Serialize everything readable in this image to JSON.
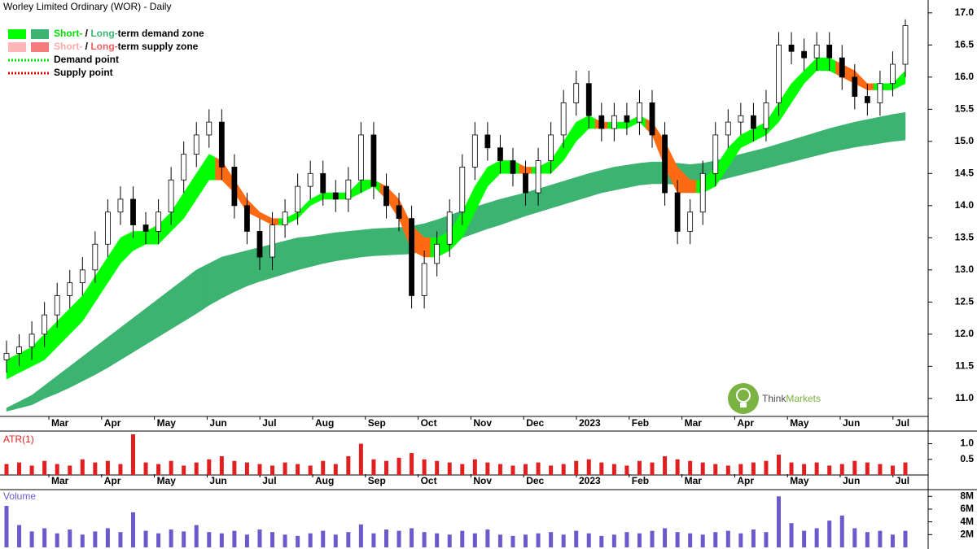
{
  "chart_data": [
    {
      "type": "candlestick",
      "title": "Worley Limited Ordinary (WOR) - Daily",
      "categories": [
        "Mar",
        "Apr",
        "May",
        "Jun",
        "Jul",
        "Aug",
        "Sep",
        "Oct",
        "Nov",
        "Dec",
        "2023",
        "Feb",
        "Mar",
        "Apr",
        "May",
        "Jun",
        "Jul"
      ],
      "open": [
        11.6,
        11.7,
        11.8,
        12.0,
        12.3,
        12.6,
        12.8,
        13.0,
        13.4,
        13.9,
        14.1,
        13.7,
        13.6,
        13.9,
        14.4,
        14.8,
        15.1,
        15.3,
        14.6,
        14.0,
        13.6,
        13.2,
        13.7,
        13.9,
        14.3,
        14.5,
        14.2,
        14.1,
        14.4,
        15.1,
        14.3,
        14.0,
        13.8,
        12.6,
        13.1,
        13.4,
        13.9,
        14.6,
        15.1,
        14.9,
        14.7,
        14.5,
        14.2,
        14.7,
        15.1,
        15.6,
        15.9,
        15.4,
        15.2,
        15.4,
        15.3,
        15.6,
        15.1,
        14.2,
        13.6,
        13.9,
        14.5,
        15.1,
        15.3,
        15.4,
        15.2,
        15.6,
        16.5,
        16.4,
        16.3,
        16.5,
        16.3,
        16.0,
        15.7,
        15.6,
        15.9,
        16.2
      ],
      "high": [
        11.9,
        12.0,
        12.2,
        12.5,
        12.8,
        13.0,
        13.2,
        13.6,
        14.1,
        14.3,
        14.3,
        13.9,
        14.1,
        14.6,
        15.0,
        15.3,
        15.5,
        15.5,
        14.8,
        14.2,
        13.8,
        13.9,
        14.1,
        14.5,
        14.7,
        14.7,
        14.4,
        14.6,
        15.3,
        15.3,
        14.5,
        14.2,
        14.0,
        13.3,
        13.6,
        14.1,
        14.8,
        15.3,
        15.3,
        15.1,
        14.9,
        14.7,
        14.9,
        15.3,
        15.8,
        16.1,
        16.1,
        15.6,
        15.6,
        15.6,
        15.8,
        15.8,
        15.3,
        14.4,
        14.1,
        14.7,
        15.3,
        15.5,
        15.6,
        15.6,
        15.8,
        16.7,
        16.7,
        16.6,
        16.7,
        16.7,
        16.5,
        16.2,
        15.9,
        16.1,
        16.4,
        16.9
      ],
      "low": [
        11.4,
        11.5,
        11.6,
        11.8,
        12.1,
        12.4,
        12.6,
        12.8,
        13.2,
        13.7,
        13.5,
        13.4,
        13.4,
        13.7,
        14.2,
        14.6,
        14.9,
        14.4,
        13.8,
        13.4,
        13.0,
        13.0,
        13.5,
        13.7,
        14.1,
        14.0,
        13.9,
        13.9,
        14.2,
        14.1,
        13.8,
        13.6,
        12.4,
        12.4,
        12.9,
        13.2,
        13.7,
        14.4,
        14.7,
        14.5,
        14.3,
        14.0,
        14.0,
        14.5,
        14.9,
        15.4,
        15.2,
        15.0,
        15.0,
        15.1,
        15.1,
        14.9,
        14.0,
        13.4,
        13.4,
        13.7,
        14.3,
        14.9,
        15.1,
        15.0,
        15.0,
        15.4,
        16.2,
        16.1,
        16.1,
        16.1,
        15.8,
        15.5,
        15.4,
        15.4,
        15.7,
        16.0
      ],
      "close": [
        11.7,
        11.8,
        12.0,
        12.3,
        12.6,
        12.8,
        13.0,
        13.4,
        13.9,
        14.1,
        13.7,
        13.6,
        13.9,
        14.4,
        14.8,
        15.1,
        15.3,
        14.6,
        14.0,
        13.6,
        13.2,
        13.7,
        13.9,
        14.3,
        14.5,
        14.2,
        14.1,
        14.4,
        15.1,
        14.3,
        14.0,
        13.8,
        12.6,
        13.1,
        13.4,
        13.9,
        14.6,
        15.1,
        14.9,
        14.7,
        14.5,
        14.2,
        14.7,
        15.1,
        15.6,
        15.9,
        15.4,
        15.2,
        15.4,
        15.3,
        15.6,
        15.1,
        14.2,
        13.6,
        13.9,
        14.5,
        15.1,
        15.3,
        15.4,
        15.2,
        15.6,
        16.5,
        16.4,
        16.3,
        16.5,
        16.3,
        16.0,
        15.7,
        15.6,
        15.9,
        16.2,
        16.8
      ],
      "short_upper": [
        11.6,
        11.7,
        11.8,
        12.0,
        12.2,
        12.4,
        12.6,
        12.9,
        13.2,
        13.5,
        13.6,
        13.6,
        13.7,
        13.9,
        14.2,
        14.5,
        14.8,
        14.7,
        14.4,
        14.1,
        13.9,
        13.8,
        13.8,
        13.9,
        14.1,
        14.2,
        14.2,
        14.2,
        14.4,
        14.4,
        14.3,
        14.1,
        13.7,
        13.5,
        13.5,
        13.6,
        13.9,
        14.3,
        14.6,
        14.7,
        14.7,
        14.6,
        14.6,
        14.7,
        15.0,
        15.3,
        15.4,
        15.3,
        15.3,
        15.3,
        15.4,
        15.3,
        15.0,
        14.6,
        14.4,
        14.4,
        14.6,
        14.9,
        15.1,
        15.2,
        15.3,
        15.6,
        15.9,
        16.1,
        16.3,
        16.3,
        16.2,
        16.1,
        15.9,
        15.9,
        15.9,
        16.1
      ],
      "short_lower": [
        11.3,
        11.4,
        11.5,
        11.6,
        11.8,
        12.0,
        12.2,
        12.5,
        12.8,
        13.1,
        13.3,
        13.4,
        13.4,
        13.6,
        13.8,
        14.1,
        14.4,
        14.4,
        14.2,
        13.9,
        13.8,
        13.7,
        13.7,
        13.8,
        14.0,
        14.1,
        14.1,
        14.1,
        14.2,
        14.3,
        14.1,
        13.8,
        13.3,
        13.2,
        13.2,
        13.3,
        13.5,
        13.9,
        14.3,
        14.5,
        14.5,
        14.5,
        14.5,
        14.5,
        14.7,
        15.0,
        15.2,
        15.2,
        15.2,
        15.2,
        15.3,
        15.1,
        14.6,
        14.2,
        14.2,
        14.2,
        14.3,
        14.6,
        14.9,
        15.0,
        15.1,
        15.3,
        15.6,
        15.9,
        16.1,
        16.1,
        16.0,
        15.9,
        15.8,
        15.8,
        15.8,
        15.9
      ],
      "long_upper": [
        10.85,
        10.95,
        11.05,
        11.2,
        11.35,
        11.5,
        11.65,
        11.8,
        11.95,
        12.1,
        12.25,
        12.4,
        12.55,
        12.7,
        12.85,
        13.0,
        13.1,
        13.2,
        13.25,
        13.3,
        13.35,
        13.4,
        13.45,
        13.5,
        13.52,
        13.55,
        13.58,
        13.6,
        13.62,
        13.64,
        13.65,
        13.66,
        13.68,
        13.72,
        13.78,
        13.85,
        13.92,
        13.98,
        14.04,
        14.1,
        14.15,
        14.2,
        14.26,
        14.32,
        14.38,
        14.44,
        14.5,
        14.55,
        14.6,
        14.63,
        14.66,
        14.68,
        14.68,
        14.66,
        14.64,
        14.66,
        14.7,
        14.75,
        14.8,
        14.85,
        14.9,
        14.96,
        15.02,
        15.08,
        15.14,
        15.2,
        15.25,
        15.3,
        15.34,
        15.38,
        15.42,
        15.45
      ],
      "long_lower": [
        10.8,
        10.85,
        10.9,
        11.0,
        11.08,
        11.17,
        11.27,
        11.37,
        11.48,
        11.6,
        11.72,
        11.84,
        11.96,
        12.08,
        12.2,
        12.32,
        12.45,
        12.56,
        12.66,
        12.75,
        12.82,
        12.88,
        12.94,
        13.0,
        13.05,
        13.1,
        13.14,
        13.17,
        13.2,
        13.22,
        13.23,
        13.24,
        13.25,
        13.3,
        13.36,
        13.42,
        13.5,
        13.57,
        13.64,
        13.7,
        13.77,
        13.84,
        13.9,
        13.96,
        14.02,
        14.08,
        14.14,
        14.2,
        14.24,
        14.28,
        14.32,
        14.34,
        14.34,
        14.33,
        14.32,
        14.34,
        14.38,
        14.43,
        14.48,
        14.53,
        14.58,
        14.63,
        14.68,
        14.73,
        14.78,
        14.83,
        14.87,
        14.91,
        14.94,
        14.97,
        15.0,
        15.02
      ],
      "demand_color": "#00ff00",
      "supply_color": "#ff6a13",
      "long_color": "#3cb371",
      "ylim": [
        10.72,
        17.2
      ],
      "yticks": [
        {
          "value": 11,
          "label": "11.0"
        },
        11.5,
        {
          "value": 12,
          "label": "12.0"
        },
        12.5,
        {
          "value": 13,
          "label": "13.0"
        },
        13.5,
        {
          "value": 14,
          "label": "14.0"
        },
        14.5,
        {
          "value": 15,
          "label": "15.0"
        },
        15.5,
        {
          "value": 16,
          "label": "16.0"
        },
        16.5,
        {
          "value": 17,
          "label": "17.0"
        }
      ],
      "legend": [
        {
          "swatches": [
            "#00ff00",
            "#3cb371"
          ],
          "parts": [
            {
              "text": "Short-",
              "color": "#00dd00"
            },
            {
              "text": " / ",
              "color": "#000000"
            },
            {
              "text": "Long-",
              "color": "#3cb371"
            },
            {
              "text": "term demand zone",
              "color": "#000000"
            }
          ]
        },
        {
          "swatches": [
            "#ffb6b6",
            "#f47c7c"
          ],
          "parts": [
            {
              "text": "Short-",
              "color": "#ffaaaa"
            },
            {
              "text": " / ",
              "color": "#000000"
            },
            {
              "text": "Long-",
              "color": "#f06060"
            },
            {
              "text": "term supply zone",
              "color": "#000000"
            }
          ]
        },
        {
          "dots": "#00dd00",
          "parts": [
            {
              "text": "Demand point",
              "color": "#000000"
            }
          ]
        },
        {
          "dots": "#dd0000",
          "parts": [
            {
              "text": "Supply point",
              "color": "#000000"
            }
          ]
        }
      ],
      "logo": [
        "Think",
        "Markets"
      ]
    },
    {
      "type": "bar",
      "title": "ATR(1)",
      "color": "#e02020",
      "values": [
        0.35,
        0.4,
        0.3,
        0.45,
        0.35,
        0.3,
        0.5,
        0.4,
        0.45,
        0.35,
        1.3,
        0.4,
        0.35,
        0.45,
        0.3,
        0.4,
        0.5,
        0.6,
        0.45,
        0.4,
        0.35,
        0.3,
        0.4,
        0.35,
        0.3,
        0.45,
        0.35,
        0.6,
        1.0,
        0.5,
        0.45,
        0.55,
        0.7,
        0.5,
        0.45,
        0.4,
        0.35,
        0.5,
        0.4,
        0.35,
        0.3,
        0.35,
        0.4,
        0.3,
        0.35,
        0.45,
        0.5,
        0.4,
        0.35,
        0.3,
        0.45,
        0.4,
        0.6,
        0.5,
        0.45,
        0.4,
        0.35,
        0.3,
        0.35,
        0.4,
        0.45,
        0.65,
        0.4,
        0.35,
        0.4,
        0.3,
        0.35,
        0.45,
        0.4,
        0.35,
        0.3,
        0.4
      ],
      "ylim": [
        0,
        1.3
      ],
      "yticks": [
        0.5,
        {
          "value": 1,
          "label": "1.0"
        }
      ]
    },
    {
      "type": "bar",
      "title": "Volume",
      "color": "#6a5acd",
      "values": [
        6500000,
        3500000,
        2500000,
        3000000,
        2200000,
        2800000,
        2000000,
        2500000,
        3000000,
        2400000,
        5500000,
        2600000,
        2200000,
        2800000,
        2500000,
        3500000,
        2400000,
        2200000,
        2600000,
        2000000,
        2800000,
        2400000,
        2000000,
        1800000,
        2200000,
        2600000,
        2000000,
        2400000,
        3600000,
        2200000,
        2800000,
        2600000,
        3000000,
        2400000,
        2200000,
        2000000,
        2600000,
        2200000,
        2800000,
        2000000,
        1800000,
        2000000,
        2200000,
        2400000,
        2000000,
        2600000,
        2200000,
        1800000,
        2000000,
        2400000,
        2200000,
        2600000,
        3000000,
        2400000,
        2200000,
        2000000,
        2400000,
        2600000,
        2200000,
        2800000,
        2400000,
        8000000,
        3800000,
        2600000,
        3000000,
        4200000,
        5000000,
        3000000,
        2400000,
        2600000,
        2000000,
        2600000
      ],
      "ylim": [
        0,
        8800000
      ],
      "yticks": [
        {
          "value": 2000000,
          "label": "2M"
        },
        {
          "value": 4000000,
          "label": "4M"
        },
        {
          "value": 6000000,
          "label": "6M"
        },
        {
          "value": 8000000,
          "label": "8M"
        }
      ]
    }
  ]
}
